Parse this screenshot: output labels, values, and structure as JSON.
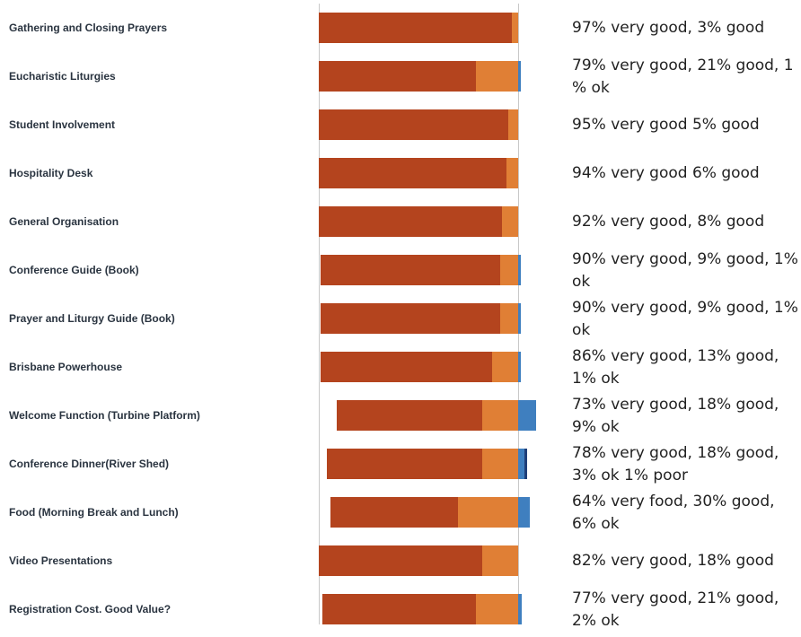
{
  "colors": {
    "very_good": "#b4441e",
    "good": "#e07f35",
    "ok": "#3f7fbf",
    "poor": "#1f3f78"
  },
  "chart_data": {
    "type": "bar",
    "orientation": "horizontal",
    "stacked": true,
    "title": "",
    "xlabel": "",
    "ylabel": "",
    "xlim": [
      0,
      100
    ],
    "legend": "none",
    "categories": [
      "Gathering and Closing Prayers",
      "Eucharistic Liturgies",
      "Student Involvement",
      "Hospitality Desk",
      "General Organisation",
      "Conference Guide (Book)",
      "Prayer and Liturgy Guide (Book)",
      "Brisbane Powerhouse",
      "Welcome Function (Turbine Platform)",
      "Conference Dinner(River Shed)",
      "Food (Morning Break and Lunch)",
      "Video Presentations",
      "Registration Cost. Good Value?"
    ],
    "series": [
      {
        "key": "very_good",
        "values": [
          97,
          79,
          95,
          94,
          92,
          90,
          90,
          86,
          73,
          78,
          64,
          82,
          77
        ]
      },
      {
        "key": "good",
        "values": [
          3,
          21,
          5,
          6,
          8,
          9,
          9,
          13,
          18,
          18,
          30,
          18,
          21
        ]
      },
      {
        "key": "ok",
        "values": [
          0,
          1,
          0,
          0,
          0,
          1,
          1,
          1,
          9,
          3,
          6,
          0,
          2
        ]
      },
      {
        "key": "poor",
        "values": [
          0,
          0,
          0,
          0,
          0,
          0,
          0,
          0,
          0,
          1,
          0,
          0,
          0
        ]
      }
    ],
    "annotations": [
      "97% very good, 3% good",
      "79% very good, 21% good, 1 % ok",
      "95% very good 5% good",
      "94% very good 6% good",
      "92% very good, 8% good",
      "90% very good, 9% good, 1% ok",
      "90% very good, 9% good, 1% ok",
      "86% very good, 13% good, 1% ok",
      "73% very good, 18% good, 9% ok",
      "78% very good, 18% good, 3% ok 1% poor",
      "64% very food, 30% good, 6% ok",
      "82% very good, 18% good",
      "77% very good, 21% good, 2% ok"
    ]
  }
}
